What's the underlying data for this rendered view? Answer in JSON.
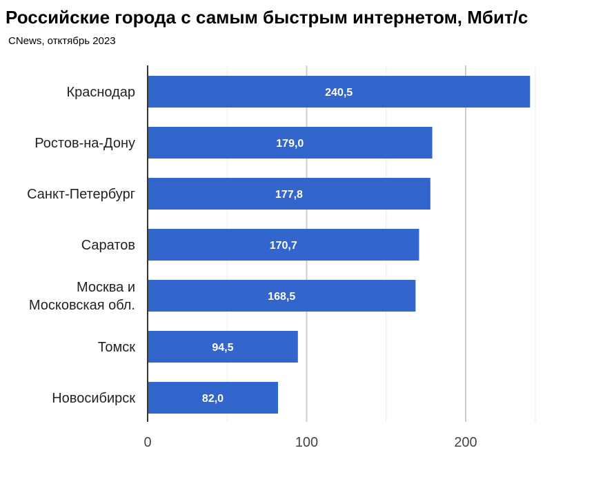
{
  "chart_data": {
    "type": "bar",
    "orientation": "horizontal",
    "title": "Российские города с самым быстрым интернетом, Мбит/с",
    "subtitle": "CNews, отктябрь 2023",
    "categories": [
      "Краснодар",
      "Ростов-на-Дону",
      "Санкт-Петербург",
      "Саратов",
      "Москва и\nМосковская обл.",
      "Томск",
      "Новосибирск"
    ],
    "values": [
      240.5,
      179.0,
      177.8,
      170.7,
      168.5,
      94.5,
      82.0
    ],
    "value_labels": [
      "240,5",
      "179,0",
      "177,8",
      "170,7",
      "168,5",
      "94,5",
      "82,0"
    ],
    "xticks": [
      0,
      100,
      200
    ],
    "xtick_labels": [
      "0",
      "100",
      "200"
    ],
    "xlim": [
      0,
      244
    ],
    "xlabel": "",
    "ylabel": "",
    "grid": true,
    "bar_color": "#3366cc"
  }
}
